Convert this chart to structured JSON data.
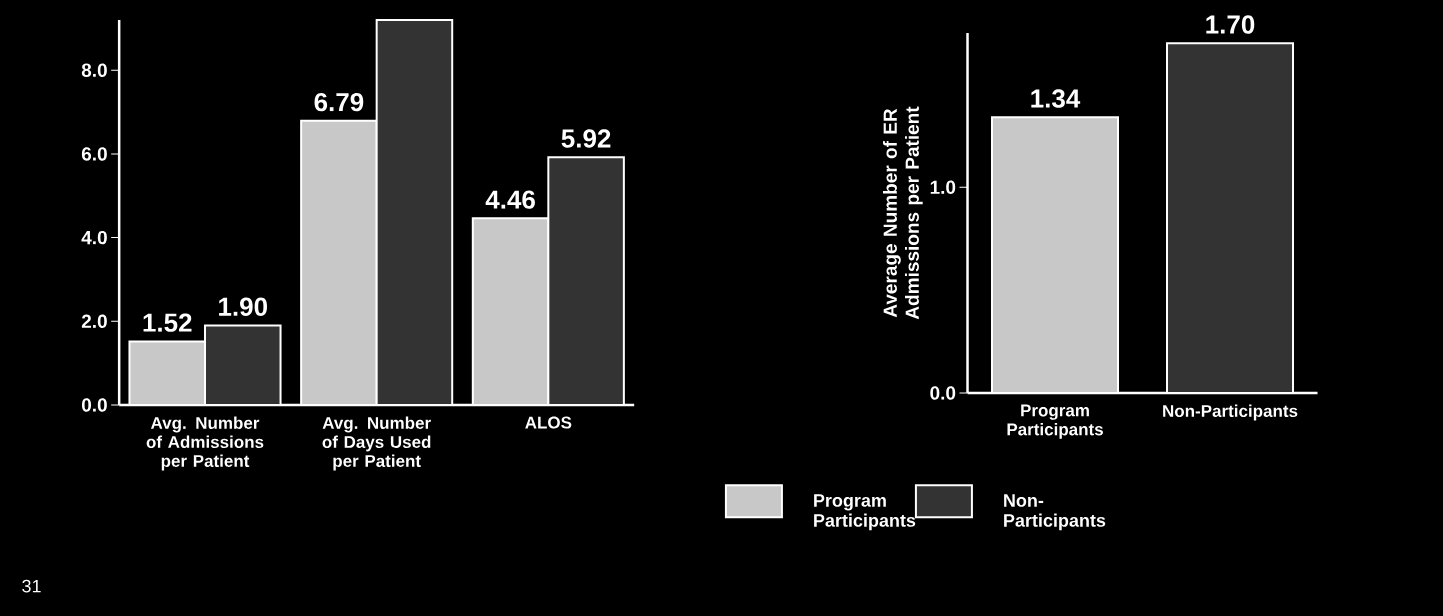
{
  "chart_data": [
    {
      "type": "bar",
      "categories": [
        "Avg. Number of Admissions per Patient",
        "Avg. Number of Days Used per Patient",
        "ALOS"
      ],
      "series": [
        {
          "name": "Program Participants",
          "color": "#c8c8c8",
          "values": [
            1.52,
            6.79,
            4.46
          ],
          "value_labels": [
            "1.52",
            "6.79",
            "4.46"
          ]
        },
        {
          "name": "Non-Participants",
          "color": "#333333",
          "values": [
            1.9,
            9.2,
            5.92
          ],
          "value_labels": [
            "1.90",
            null,
            "5.92"
          ]
        }
      ],
      "ylim": [
        0,
        9.2
      ],
      "yticks": [
        {
          "value": 0,
          "label": "0.0"
        },
        {
          "value": 2,
          "label": "2.0"
        },
        {
          "value": 4,
          "label": "4.0"
        },
        {
          "value": 6,
          "label": "6.0"
        },
        {
          "value": 8,
          "label": "8.0"
        }
      ],
      "legend": "bottom",
      "grid": false,
      "annotations": [
        "31"
      ]
    },
    {
      "type": "bar",
      "categories": [
        "Program Participants",
        "Non-Participants"
      ],
      "values": [
        1.34,
        1.7
      ],
      "colors": [
        "#c8c8c8",
        "#333333"
      ],
      "value_labels": [
        "1.34",
        "1.70"
      ],
      "ylabel": "Average Number of ER Admissions per Patient",
      "ylim": [
        0,
        1.75
      ],
      "yticks": [
        {
          "value": 0,
          "label": "0.0"
        },
        {
          "value": 1,
          "label": "1.0"
        }
      ],
      "grid": false
    }
  ]
}
